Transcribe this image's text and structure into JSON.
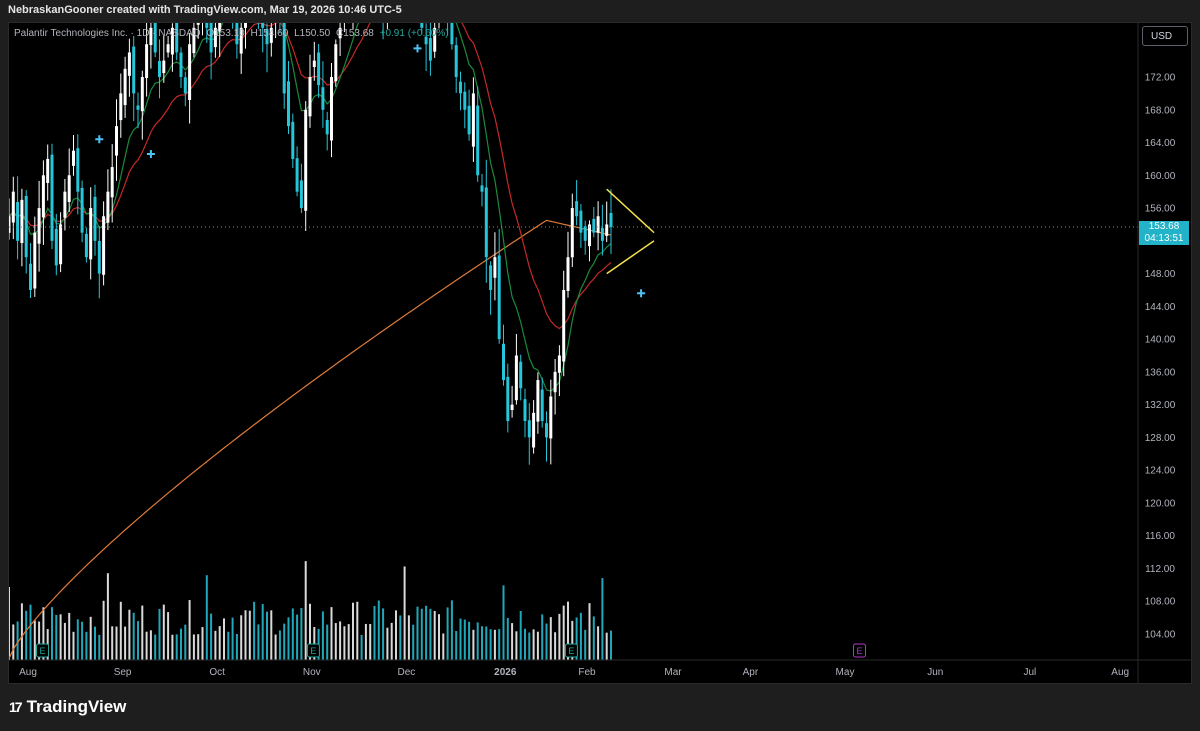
{
  "header": {
    "credit": "NebraskanGooner created with TradingView.com, Mar 19, 2026 10:46 UTC-5"
  },
  "legend": {
    "symbol": "Palantir Technologies Inc. · 1D · NASDAQ",
    "open": "O153.10",
    "high": "H154.60",
    "low": "L150.50",
    "close": "C153.68",
    "change": "+0.91 (+0.60%)"
  },
  "currency_button": "USD",
  "price_tag": {
    "price": "153.68",
    "countdown": "04:13:51"
  },
  "footer": {
    "logo_text": "TradingView",
    "logo_mark": "17"
  },
  "colors": {
    "up": "#ffffff",
    "down": "#26c6da",
    "ema_short": "#1b8a3c",
    "ema_mid": "#c62828",
    "ema_long": "#e07b39",
    "trendline": "#f4e04d",
    "marker": "#4fc3f7",
    "earnings": "#b039c8"
  },
  "chart_data": {
    "type": "candlestick",
    "symbol": "PLTR",
    "interval": "1D",
    "ylim": [
      100,
      178
    ],
    "y_ticks": [
      104,
      108,
      112,
      116,
      120,
      124,
      128,
      132,
      136,
      140,
      144,
      148,
      152,
      156,
      160,
      164,
      168,
      172
    ],
    "y_tick_labels": [
      "104.00",
      "108.00",
      "112.00",
      "116.00",
      "120.00",
      "124.00",
      "128.00",
      "132.00",
      "136.00",
      "140.00",
      "144.00",
      "148.00",
      "152.00",
      "156.00",
      "160.00",
      "164.00",
      "168.00",
      "172.00"
    ],
    "x_labels": [
      "Aug",
      "Sep",
      "Oct",
      "Nov",
      "Dec",
      "2026",
      "Feb",
      "Mar",
      "Apr",
      "May",
      "Jun",
      "Jul",
      "Aug"
    ],
    "x_label_days": [
      0,
      22,
      44,
      66,
      88,
      111,
      130,
      150,
      168,
      190,
      211,
      233,
      254
    ],
    "current_price": 153.68,
    "closes": [
      155,
      158,
      152,
      157,
      150,
      146,
      153,
      156,
      160,
      162,
      152,
      149,
      154,
      158,
      160,
      163,
      158,
      153,
      150,
      156,
      152,
      148,
      155,
      158,
      161,
      166,
      170,
      173,
      175,
      170,
      168,
      172,
      176,
      178,
      175,
      172,
      174,
      176,
      178,
      175,
      172,
      170,
      176,
      178,
      180,
      182,
      178,
      175,
      178,
      182,
      185,
      183,
      180,
      176,
      178,
      182,
      185,
      184,
      180,
      178,
      176,
      178,
      182,
      180,
      170,
      166,
      162,
      158,
      156,
      168,
      172,
      174,
      171,
      168,
      165,
      172,
      176,
      178,
      180,
      182,
      184,
      186,
      185,
      188,
      190,
      186,
      184,
      180,
      182,
      184,
      186,
      185,
      187,
      188,
      186,
      182,
      178,
      176,
      174,
      178,
      182,
      185,
      180,
      176,
      172,
      170,
      168,
      165,
      170,
      160,
      158,
      150,
      146,
      150,
      140,
      135,
      130,
      132,
      138,
      134,
      130,
      128,
      131,
      135,
      130,
      128,
      133,
      136,
      138,
      146,
      150,
      156,
      155,
      153,
      152,
      154,
      153,
      155,
      152,
      154,
      153.68
    ],
    "volume_scale_note": "relative",
    "ema_long_start": 101,
    "ema_long_peak": 154.5,
    "annotations": [
      "E",
      "E",
      "E",
      "E",
      "E"
    ],
    "trendlines": [
      {
        "from": [
          139,
          158.3
        ],
        "to": [
          150,
          153.0
        ]
      },
      {
        "from": [
          139,
          148.0
        ],
        "to": [
          150,
          152.0
        ]
      }
    ]
  }
}
